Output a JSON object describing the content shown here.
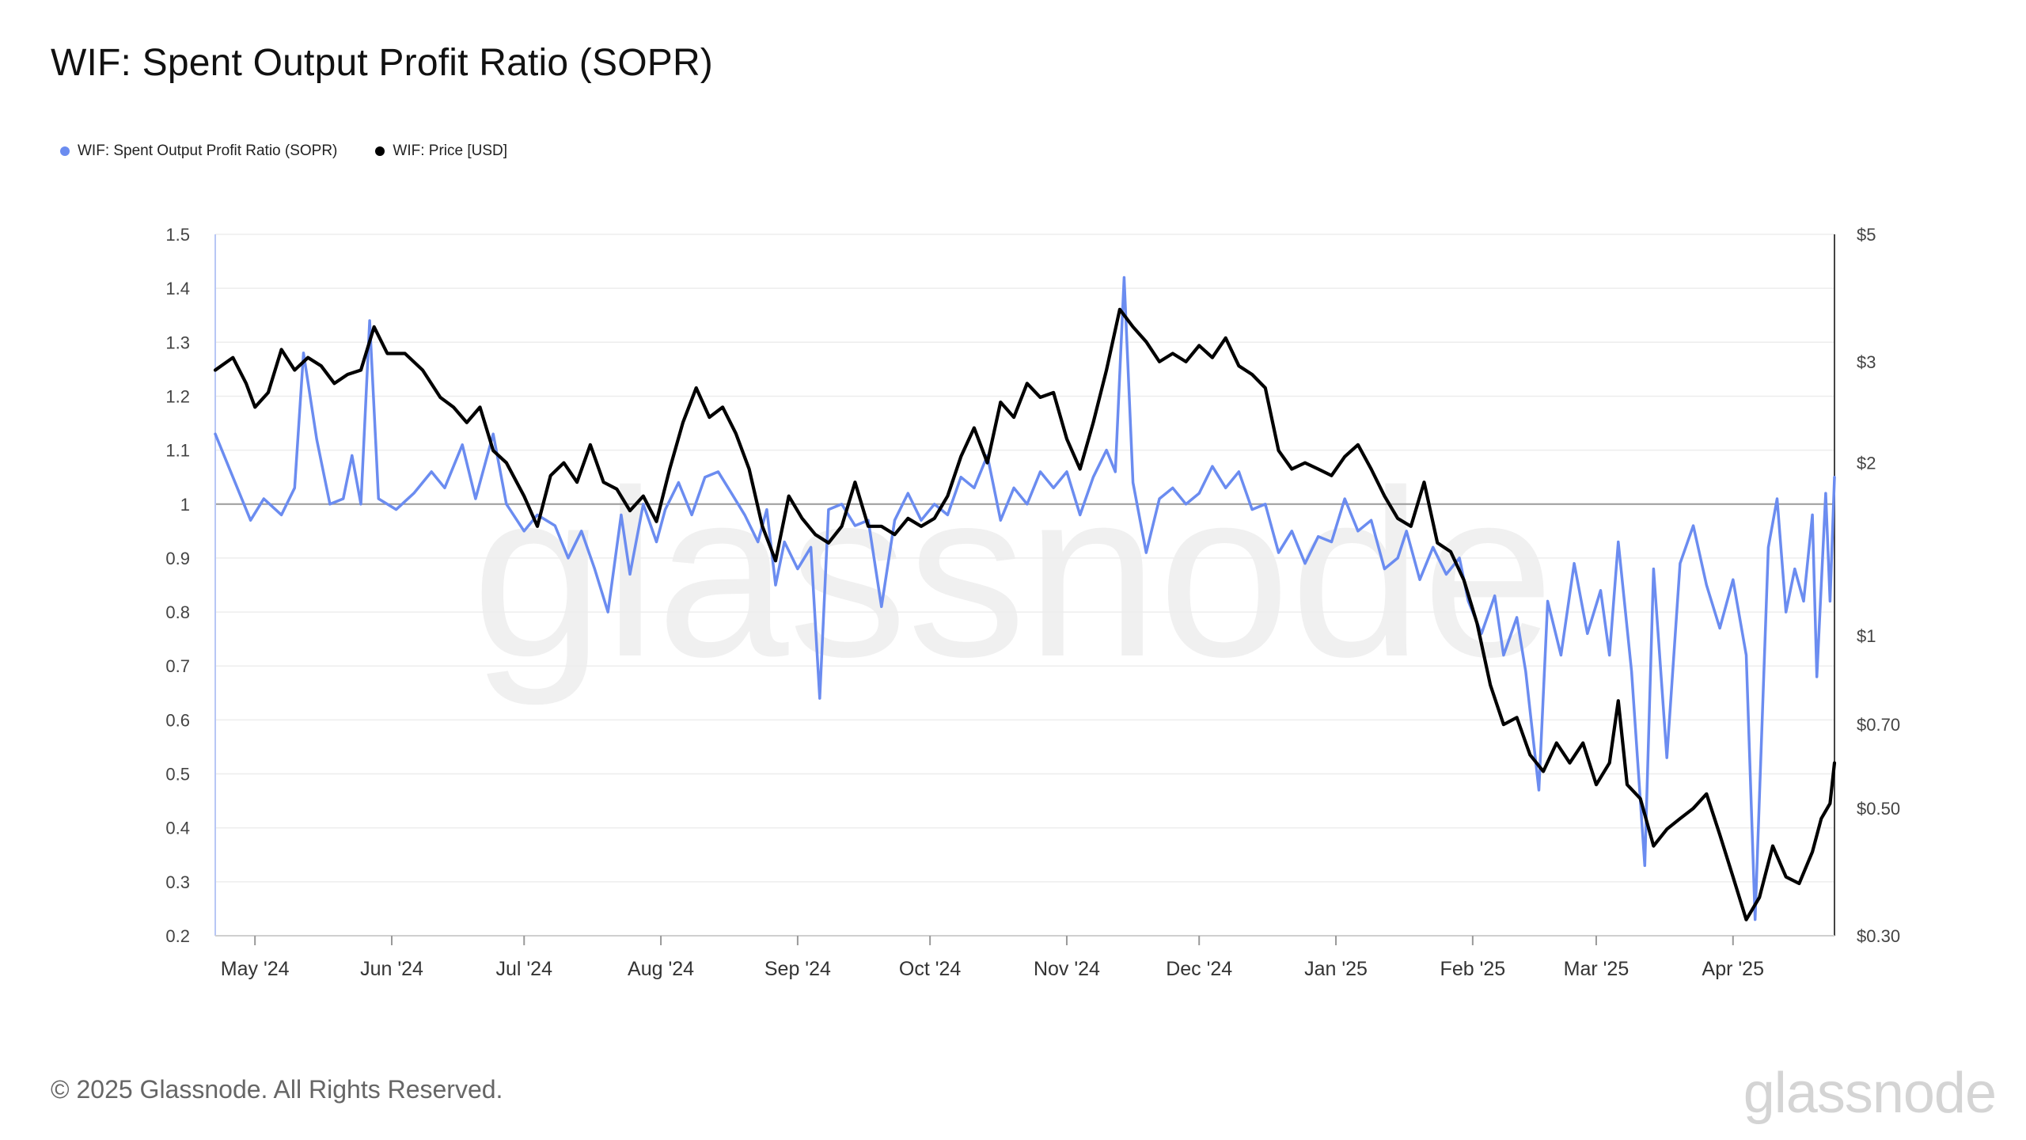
{
  "title": "WIF: Spent Output Profit Ratio (SOPR)",
  "footer": "© 2025 Glassnode. All Rights Reserved.",
  "brand": "glassnode",
  "watermark": "glassnode",
  "legend": [
    {
      "label": "WIF: Spent Output Profit Ratio (SOPR)",
      "color": "#6b8cf0"
    },
    {
      "label": "WIF: Price [USD]",
      "color": "#000000"
    }
  ],
  "chart_data": {
    "type": "line",
    "start_date": "2024-04-22",
    "end_date": "2025-04-24",
    "x_ticks": [
      "May '24",
      "Jun '24",
      "Jul '24",
      "Aug '24",
      "Sep '24",
      "Oct '24",
      "Nov '24",
      "Dec '24",
      "Jan '25",
      "Feb '25",
      "Mar '25",
      "Apr '25"
    ],
    "x_tick_dates": [
      "2024-05-01",
      "2024-06-01",
      "2024-07-01",
      "2024-08-01",
      "2024-09-01",
      "2024-10-01",
      "2024-11-01",
      "2024-12-01",
      "2025-01-01",
      "2025-02-01",
      "2025-03-01",
      "2025-04-01"
    ],
    "y_left": {
      "ylim": [
        0.2,
        1.5
      ],
      "ticks": [
        "1.5",
        "1.4",
        "1.3",
        "1.2",
        "1.1",
        "1",
        "0.9",
        "0.8",
        "0.7",
        "0.6",
        "0.5",
        "0.4",
        "0.3",
        "0.2"
      ]
    },
    "y_right": {
      "scale": "log",
      "ylim": [
        0.3,
        5
      ],
      "ticks": [
        {
          "label": "$5",
          "value": 5
        },
        {
          "label": "$3",
          "value": 3
        },
        {
          "label": "$2",
          "value": 2
        },
        {
          "label": "$1",
          "value": 1
        },
        {
          "label": "$0.70",
          "value": 0.7
        },
        {
          "label": "$0.50",
          "value": 0.5
        },
        {
          "label": "$0.30",
          "value": 0.3
        }
      ]
    },
    "reference_line": 1,
    "series": [
      {
        "name": "WIF: Spent Output Profit Ratio (SOPR)",
        "color": "#6b8cf0",
        "axis": "left",
        "points": [
          [
            "2024-04-22",
            1.13
          ],
          [
            "2024-04-26",
            1.05
          ],
          [
            "2024-04-30",
            0.97
          ],
          [
            "2024-05-03",
            1.01
          ],
          [
            "2024-05-07",
            0.98
          ],
          [
            "2024-05-10",
            1.03
          ],
          [
            "2024-05-12",
            1.28
          ],
          [
            "2024-05-15",
            1.12
          ],
          [
            "2024-05-18",
            1.0
          ],
          [
            "2024-05-21",
            1.01
          ],
          [
            "2024-05-23",
            1.09
          ],
          [
            "2024-05-25",
            1.0
          ],
          [
            "2024-05-27",
            1.34
          ],
          [
            "2024-05-29",
            1.01
          ],
          [
            "2024-06-02",
            0.99
          ],
          [
            "2024-06-06",
            1.02
          ],
          [
            "2024-06-10",
            1.06
          ],
          [
            "2024-06-13",
            1.03
          ],
          [
            "2024-06-17",
            1.11
          ],
          [
            "2024-06-20",
            1.01
          ],
          [
            "2024-06-24",
            1.13
          ],
          [
            "2024-06-27",
            1.0
          ],
          [
            "2024-07-01",
            0.95
          ],
          [
            "2024-07-04",
            0.98
          ],
          [
            "2024-07-08",
            0.96
          ],
          [
            "2024-07-11",
            0.9
          ],
          [
            "2024-07-14",
            0.95
          ],
          [
            "2024-07-17",
            0.88
          ],
          [
            "2024-07-20",
            0.8
          ],
          [
            "2024-07-23",
            0.98
          ],
          [
            "2024-07-25",
            0.87
          ],
          [
            "2024-07-28",
            1.0
          ],
          [
            "2024-07-31",
            0.93
          ],
          [
            "2024-08-02",
            0.99
          ],
          [
            "2024-08-05",
            1.04
          ],
          [
            "2024-08-08",
            0.98
          ],
          [
            "2024-08-11",
            1.05
          ],
          [
            "2024-08-14",
            1.06
          ],
          [
            "2024-08-17",
            1.02
          ],
          [
            "2024-08-20",
            0.98
          ],
          [
            "2024-08-23",
            0.93
          ],
          [
            "2024-08-25",
            0.99
          ],
          [
            "2024-08-27",
            0.85
          ],
          [
            "2024-08-29",
            0.93
          ],
          [
            "2024-09-01",
            0.88
          ],
          [
            "2024-09-04",
            0.92
          ],
          [
            "2024-09-06",
            0.64
          ],
          [
            "2024-09-08",
            0.99
          ],
          [
            "2024-09-11",
            1.0
          ],
          [
            "2024-09-14",
            0.96
          ],
          [
            "2024-09-17",
            0.97
          ],
          [
            "2024-09-20",
            0.81
          ],
          [
            "2024-09-23",
            0.97
          ],
          [
            "2024-09-26",
            1.02
          ],
          [
            "2024-09-29",
            0.97
          ],
          [
            "2024-10-02",
            1.0
          ],
          [
            "2024-10-05",
            0.98
          ],
          [
            "2024-10-08",
            1.05
          ],
          [
            "2024-10-11",
            1.03
          ],
          [
            "2024-10-14",
            1.09
          ],
          [
            "2024-10-17",
            0.97
          ],
          [
            "2024-10-20",
            1.03
          ],
          [
            "2024-10-23",
            1.0
          ],
          [
            "2024-10-26",
            1.06
          ],
          [
            "2024-10-29",
            1.03
          ],
          [
            "2024-11-01",
            1.06
          ],
          [
            "2024-11-04",
            0.98
          ],
          [
            "2024-11-07",
            1.05
          ],
          [
            "2024-11-10",
            1.1
          ],
          [
            "2024-11-12",
            1.06
          ],
          [
            "2024-11-14",
            1.42
          ],
          [
            "2024-11-16",
            1.04
          ],
          [
            "2024-11-19",
            0.91
          ],
          [
            "2024-11-22",
            1.01
          ],
          [
            "2024-11-25",
            1.03
          ],
          [
            "2024-11-28",
            1.0
          ],
          [
            "2024-12-01",
            1.02
          ],
          [
            "2024-12-04",
            1.07
          ],
          [
            "2024-12-07",
            1.03
          ],
          [
            "2024-12-10",
            1.06
          ],
          [
            "2024-12-13",
            0.99
          ],
          [
            "2024-12-16",
            1.0
          ],
          [
            "2024-12-19",
            0.91
          ],
          [
            "2024-12-22",
            0.95
          ],
          [
            "2024-12-25",
            0.89
          ],
          [
            "2024-12-28",
            0.94
          ],
          [
            "2024-12-31",
            0.93
          ],
          [
            "2025-01-03",
            1.01
          ],
          [
            "2025-01-06",
            0.95
          ],
          [
            "2025-01-09",
            0.97
          ],
          [
            "2025-01-12",
            0.88
          ],
          [
            "2025-01-15",
            0.9
          ],
          [
            "2025-01-17",
            0.95
          ],
          [
            "2025-01-20",
            0.86
          ],
          [
            "2025-01-23",
            0.92
          ],
          [
            "2025-01-26",
            0.87
          ],
          [
            "2025-01-29",
            0.9
          ],
          [
            "2025-01-31",
            0.82
          ],
          [
            "2025-02-03",
            0.76
          ],
          [
            "2025-02-06",
            0.83
          ],
          [
            "2025-02-08",
            0.72
          ],
          [
            "2025-02-11",
            0.79
          ],
          [
            "2025-02-13",
            0.69
          ],
          [
            "2025-02-16",
            0.47
          ],
          [
            "2025-02-18",
            0.82
          ],
          [
            "2025-02-21",
            0.72
          ],
          [
            "2025-02-24",
            0.89
          ],
          [
            "2025-02-27",
            0.76
          ],
          [
            "2025-03-02",
            0.84
          ],
          [
            "2025-03-04",
            0.72
          ],
          [
            "2025-03-06",
            0.93
          ],
          [
            "2025-03-09",
            0.69
          ],
          [
            "2025-03-12",
            0.33
          ],
          [
            "2025-03-14",
            0.88
          ],
          [
            "2025-03-17",
            0.53
          ],
          [
            "2025-03-20",
            0.89
          ],
          [
            "2025-03-23",
            0.96
          ],
          [
            "2025-03-26",
            0.85
          ],
          [
            "2025-03-29",
            0.77
          ],
          [
            "2025-04-01",
            0.86
          ],
          [
            "2025-04-04",
            0.72
          ],
          [
            "2025-04-06",
            0.23
          ],
          [
            "2025-04-09",
            0.92
          ],
          [
            "2025-04-11",
            1.01
          ],
          [
            "2025-04-13",
            0.8
          ],
          [
            "2025-04-15",
            0.88
          ],
          [
            "2025-04-17",
            0.82
          ],
          [
            "2025-04-19",
            0.98
          ],
          [
            "2025-04-20",
            0.68
          ],
          [
            "2025-04-22",
            1.02
          ],
          [
            "2025-04-23",
            0.82
          ],
          [
            "2025-04-24",
            1.05
          ]
        ]
      },
      {
        "name": "WIF: Price [USD]",
        "color": "#000000",
        "axis": "right",
        "points": [
          [
            "2024-04-22",
            2.9
          ],
          [
            "2024-04-26",
            3.05
          ],
          [
            "2024-04-29",
            2.75
          ],
          [
            "2024-05-01",
            2.5
          ],
          [
            "2024-05-04",
            2.65
          ],
          [
            "2024-05-07",
            3.15
          ],
          [
            "2024-05-10",
            2.9
          ],
          [
            "2024-05-13",
            3.05
          ],
          [
            "2024-05-16",
            2.95
          ],
          [
            "2024-05-19",
            2.75
          ],
          [
            "2024-05-22",
            2.85
          ],
          [
            "2024-05-25",
            2.9
          ],
          [
            "2024-05-28",
            3.45
          ],
          [
            "2024-05-31",
            3.1
          ],
          [
            "2024-06-04",
            3.1
          ],
          [
            "2024-06-08",
            2.9
          ],
          [
            "2024-06-12",
            2.6
          ],
          [
            "2024-06-15",
            2.5
          ],
          [
            "2024-06-18",
            2.35
          ],
          [
            "2024-06-21",
            2.5
          ],
          [
            "2024-06-24",
            2.1
          ],
          [
            "2024-06-27",
            2.0
          ],
          [
            "2024-07-01",
            1.75
          ],
          [
            "2024-07-04",
            1.55
          ],
          [
            "2024-07-07",
            1.9
          ],
          [
            "2024-07-10",
            2.0
          ],
          [
            "2024-07-13",
            1.85
          ],
          [
            "2024-07-16",
            2.15
          ],
          [
            "2024-07-19",
            1.85
          ],
          [
            "2024-07-22",
            1.8
          ],
          [
            "2024-07-25",
            1.65
          ],
          [
            "2024-07-28",
            1.75
          ],
          [
            "2024-07-31",
            1.58
          ],
          [
            "2024-08-03",
            1.95
          ],
          [
            "2024-08-06",
            2.35
          ],
          [
            "2024-08-09",
            2.7
          ],
          [
            "2024-08-12",
            2.4
          ],
          [
            "2024-08-15",
            2.5
          ],
          [
            "2024-08-18",
            2.25
          ],
          [
            "2024-08-21",
            1.95
          ],
          [
            "2024-08-24",
            1.55
          ],
          [
            "2024-08-27",
            1.35
          ],
          [
            "2024-08-30",
            1.75
          ],
          [
            "2024-09-02",
            1.6
          ],
          [
            "2024-09-05",
            1.5
          ],
          [
            "2024-09-08",
            1.45
          ],
          [
            "2024-09-11",
            1.55
          ],
          [
            "2024-09-14",
            1.85
          ],
          [
            "2024-09-17",
            1.55
          ],
          [
            "2024-09-20",
            1.55
          ],
          [
            "2024-09-23",
            1.5
          ],
          [
            "2024-09-26",
            1.6
          ],
          [
            "2024-09-29",
            1.55
          ],
          [
            "2024-10-02",
            1.6
          ],
          [
            "2024-10-05",
            1.75
          ],
          [
            "2024-10-08",
            2.05
          ],
          [
            "2024-10-11",
            2.3
          ],
          [
            "2024-10-14",
            2.0
          ],
          [
            "2024-10-17",
            2.55
          ],
          [
            "2024-10-20",
            2.4
          ],
          [
            "2024-10-23",
            2.75
          ],
          [
            "2024-10-26",
            2.6
          ],
          [
            "2024-10-29",
            2.65
          ],
          [
            "2024-11-01",
            2.2
          ],
          [
            "2024-11-04",
            1.95
          ],
          [
            "2024-11-07",
            2.35
          ],
          [
            "2024-11-10",
            2.9
          ],
          [
            "2024-11-13",
            3.7
          ],
          [
            "2024-11-16",
            3.45
          ],
          [
            "2024-11-19",
            3.25
          ],
          [
            "2024-11-22",
            3.0
          ],
          [
            "2024-11-25",
            3.1
          ],
          [
            "2024-11-28",
            3.0
          ],
          [
            "2024-12-01",
            3.2
          ],
          [
            "2024-12-04",
            3.05
          ],
          [
            "2024-12-07",
            3.3
          ],
          [
            "2024-12-10",
            2.95
          ],
          [
            "2024-12-13",
            2.85
          ],
          [
            "2024-12-16",
            2.7
          ],
          [
            "2024-12-19",
            2.1
          ],
          [
            "2024-12-22",
            1.95
          ],
          [
            "2024-12-25",
            2.0
          ],
          [
            "2024-12-28",
            1.95
          ],
          [
            "2024-12-31",
            1.9
          ],
          [
            "2025-01-03",
            2.05
          ],
          [
            "2025-01-06",
            2.15
          ],
          [
            "2025-01-09",
            1.95
          ],
          [
            "2025-01-12",
            1.75
          ],
          [
            "2025-01-15",
            1.6
          ],
          [
            "2025-01-18",
            1.55
          ],
          [
            "2025-01-21",
            1.85
          ],
          [
            "2025-01-24",
            1.45
          ],
          [
            "2025-01-27",
            1.4
          ],
          [
            "2025-01-30",
            1.25
          ],
          [
            "2025-02-02",
            1.05
          ],
          [
            "2025-02-05",
            0.82
          ],
          [
            "2025-02-08",
            0.7
          ],
          [
            "2025-02-11",
            0.72
          ],
          [
            "2025-02-14",
            0.62
          ],
          [
            "2025-02-17",
            0.58
          ],
          [
            "2025-02-20",
            0.65
          ],
          [
            "2025-02-23",
            0.6
          ],
          [
            "2025-02-26",
            0.65
          ],
          [
            "2025-03-01",
            0.55
          ],
          [
            "2025-03-04",
            0.6
          ],
          [
            "2025-03-06",
            0.77
          ],
          [
            "2025-03-08",
            0.55
          ],
          [
            "2025-03-11",
            0.52
          ],
          [
            "2025-03-14",
            0.43
          ],
          [
            "2025-03-17",
            0.46
          ],
          [
            "2025-03-20",
            0.48
          ],
          [
            "2025-03-23",
            0.5
          ],
          [
            "2025-03-26",
            0.53
          ],
          [
            "2025-03-29",
            0.45
          ],
          [
            "2025-04-01",
            0.38
          ],
          [
            "2025-04-04",
            0.32
          ],
          [
            "2025-04-07",
            0.35
          ],
          [
            "2025-04-10",
            0.43
          ],
          [
            "2025-04-13",
            0.38
          ],
          [
            "2025-04-16",
            0.37
          ],
          [
            "2025-04-19",
            0.42
          ],
          [
            "2025-04-21",
            0.48
          ],
          [
            "2025-04-23",
            0.51
          ],
          [
            "2025-04-24",
            0.6
          ]
        ]
      }
    ]
  }
}
